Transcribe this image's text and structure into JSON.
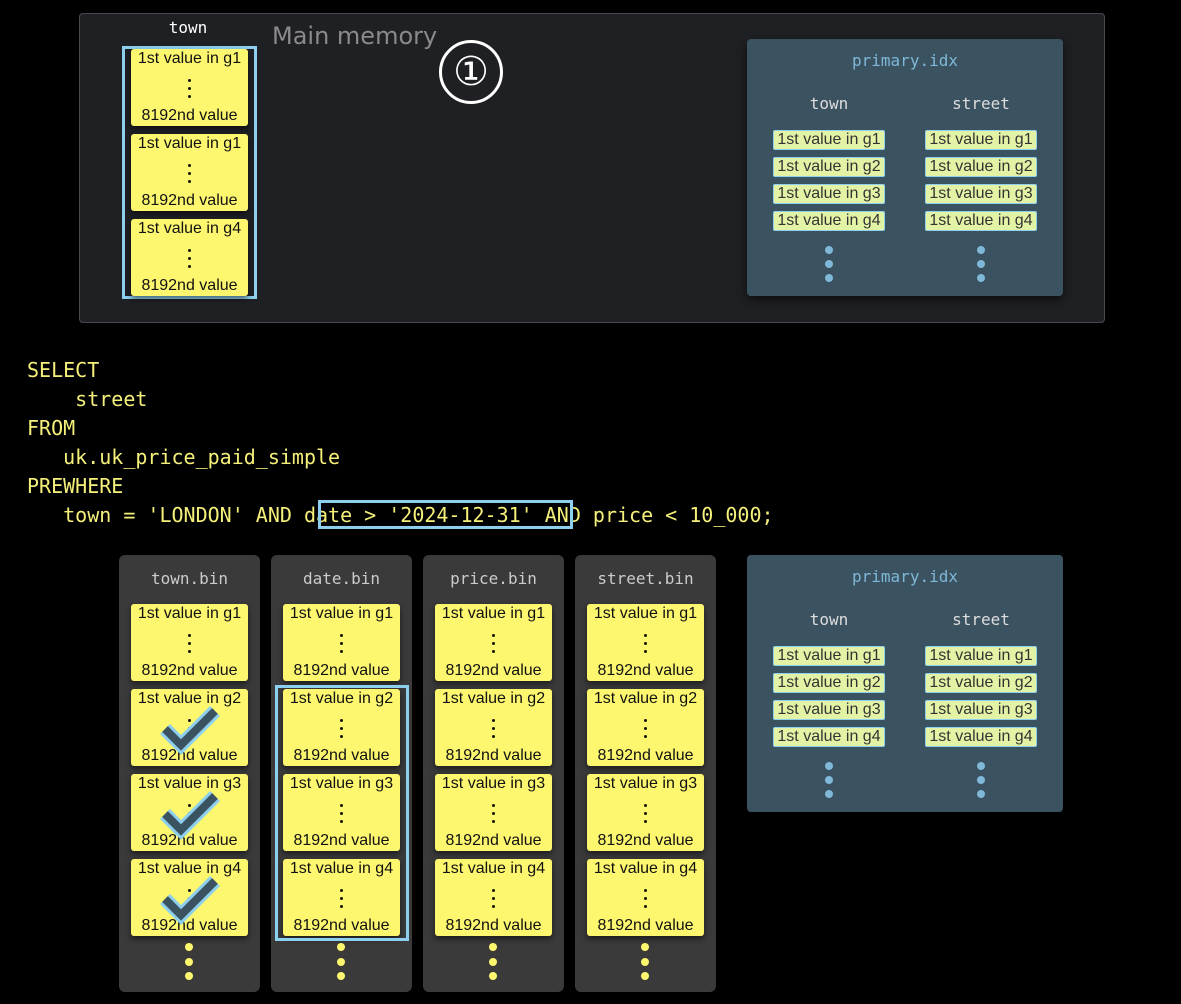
{
  "main_memory": {
    "label": "Main memory",
    "column": "town",
    "step_marker": "①",
    "granules": [
      {
        "first": "1st value in g1",
        "last": "8192nd value"
      },
      {
        "first": "1st value in g1",
        "last": "8192nd value"
      },
      {
        "first": "1st value in g4",
        "last": "8192nd value"
      }
    ]
  },
  "primary_index": {
    "title": "primary.idx",
    "columns": [
      {
        "name": "town",
        "items": [
          "1st value in g1",
          "1st value in g2",
          "1st value in g3",
          "1st value in g4"
        ]
      },
      {
        "name": "street",
        "items": [
          "1st value in g1",
          "1st value in g2",
          "1st value in g3",
          "1st value in g4"
        ]
      }
    ]
  },
  "query": {
    "lines": [
      "SELECT",
      "    street",
      "FROM",
      "   uk.uk_price_paid_simple",
      "PREWHERE",
      "   town = 'LONDON' AND date > '2024-12-31' AND price < 10_000;"
    ],
    "highlighted": "date > '2024-12-31'"
  },
  "bins": [
    {
      "name": "town.bin",
      "checked": [
        false,
        true,
        true,
        true
      ],
      "highlighted": false
    },
    {
      "name": "date.bin",
      "checked": [
        false,
        false,
        false,
        false
      ],
      "highlighted": true
    },
    {
      "name": "price.bin",
      "checked": [
        false,
        false,
        false,
        false
      ],
      "highlighted": false
    },
    {
      "name": "street.bin",
      "checked": [
        false,
        false,
        false,
        false
      ],
      "highlighted": false
    }
  ],
  "granule_labels": [
    {
      "first": "1st value in g1",
      "last": "8192nd value"
    },
    {
      "first": "1st value in g2",
      "last": "8192nd value"
    },
    {
      "first": "1st value in g3",
      "last": "8192nd value"
    },
    {
      "first": "1st value in g4",
      "last": "8192nd value"
    }
  ],
  "colors": {
    "highlight": "#8ccfee",
    "card": "#fdf76f",
    "sql": "#f5f07a",
    "index_bg": "#3b5260"
  }
}
